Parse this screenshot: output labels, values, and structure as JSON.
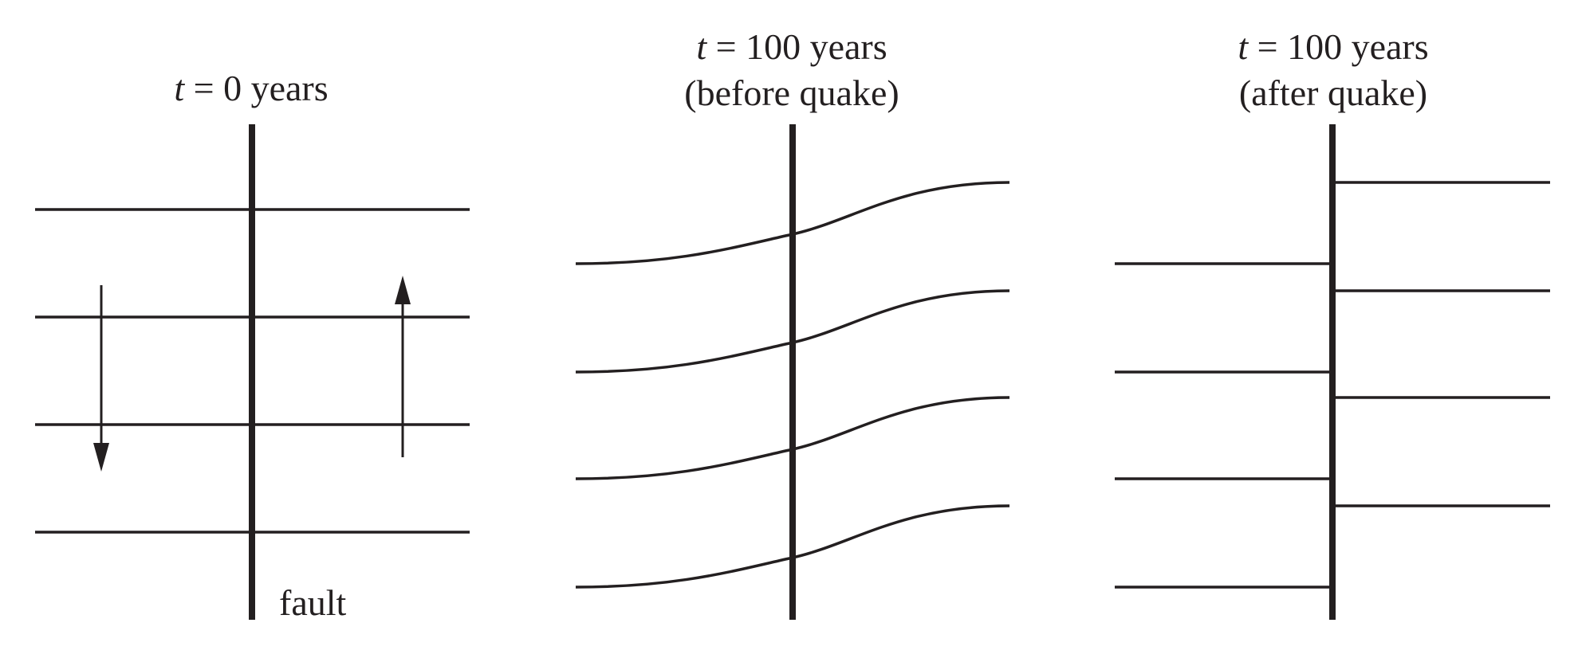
{
  "panels": [
    {
      "time_var": "t",
      "title_line1_rest": " = 0 years",
      "title_line2": "",
      "fault_label": "fault",
      "state": "initial"
    },
    {
      "time_var": "t",
      "title_line1_rest": " = 100 years",
      "title_line2": "(before quake)",
      "fault_label": "",
      "state": "bent"
    },
    {
      "time_var": "t",
      "title_line1_rest": " = 100 years",
      "title_line2": "(after quake)",
      "fault_label": "",
      "state": "offset"
    }
  ],
  "arrows": {
    "left_side": "down",
    "right_side": "up"
  },
  "colors": {
    "ink": "#231f20",
    "background": "#ffffff"
  }
}
